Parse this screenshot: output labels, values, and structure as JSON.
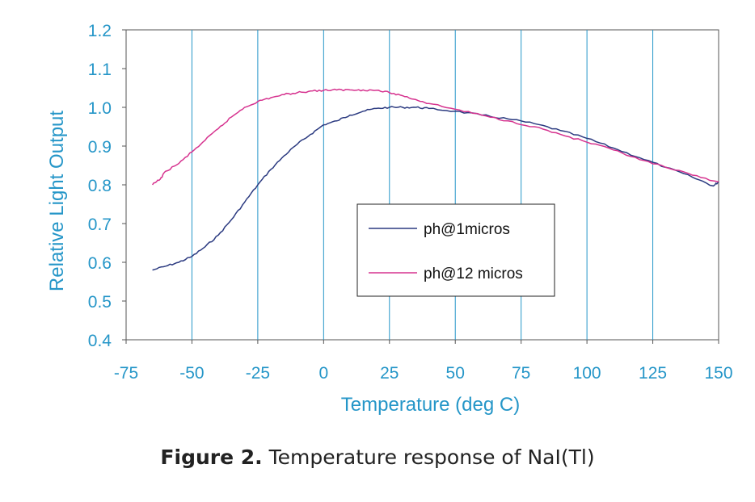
{
  "chart_data": {
    "type": "line",
    "xlabel": "Temperature (deg C)",
    "ylabel": "Relative Light Output",
    "xlim": [
      -75,
      150
    ],
    "ylim": [
      0.4,
      1.2
    ],
    "x_ticks": [
      "-75",
      "-50",
      "-25",
      "0",
      "25",
      "50",
      "75",
      "100",
      "125",
      "150"
    ],
    "y_ticks": [
      "0.4",
      "0.5",
      "0.6",
      "0.7",
      "0.8",
      "0.9",
      "1.0",
      "1.1",
      "1.2"
    ],
    "grid": "vertical",
    "legend_position": "right-center",
    "series": [
      {
        "name": "ph@1micros",
        "color": "#2b3a80",
        "points": [
          [
            -65,
            0.58
          ],
          [
            -60,
            0.59
          ],
          [
            -55,
            0.6
          ],
          [
            -50,
            0.615
          ],
          [
            -45,
            0.64
          ],
          [
            -40,
            0.67
          ],
          [
            -35,
            0.71
          ],
          [
            -30,
            0.755
          ],
          [
            -25,
            0.8
          ],
          [
            -20,
            0.84
          ],
          [
            -15,
            0.875
          ],
          [
            -10,
            0.905
          ],
          [
            -5,
            0.93
          ],
          [
            0,
            0.955
          ],
          [
            5,
            0.965
          ],
          [
            10,
            0.98
          ],
          [
            15,
            0.99
          ],
          [
            20,
            0.997
          ],
          [
            25,
            1.0
          ],
          [
            30,
            1.0
          ],
          [
            35,
            1.0
          ],
          [
            40,
            0.997
          ],
          [
            50,
            0.99
          ],
          [
            60,
            0.98
          ],
          [
            70,
            0.97
          ],
          [
            80,
            0.958
          ],
          [
            90,
            0.94
          ],
          [
            100,
            0.92
          ],
          [
            110,
            0.895
          ],
          [
            120,
            0.87
          ],
          [
            130,
            0.845
          ],
          [
            140,
            0.82
          ],
          [
            148,
            0.797
          ],
          [
            150,
            0.808
          ]
        ]
      },
      {
        "name": "ph@12 micros",
        "color": "#d6338f",
        "points": [
          [
            -65,
            0.8
          ],
          [
            -62,
            0.815
          ],
          [
            -60,
            0.835
          ],
          [
            -55,
            0.855
          ],
          [
            -50,
            0.885
          ],
          [
            -45,
            0.915
          ],
          [
            -40,
            0.945
          ],
          [
            -35,
            0.975
          ],
          [
            -30,
            1.0
          ],
          [
            -25,
            1.015
          ],
          [
            -20,
            1.025
          ],
          [
            -15,
            1.033
          ],
          [
            -10,
            1.038
          ],
          [
            -5,
            1.042
          ],
          [
            0,
            1.044
          ],
          [
            5,
            1.045
          ],
          [
            10,
            1.045
          ],
          [
            15,
            1.045
          ],
          [
            20,
            1.044
          ],
          [
            25,
            1.038
          ],
          [
            30,
            1.03
          ],
          [
            35,
            1.02
          ],
          [
            40,
            1.01
          ],
          [
            50,
            0.995
          ],
          [
            60,
            0.98
          ],
          [
            70,
            0.965
          ],
          [
            80,
            0.95
          ],
          [
            90,
            0.93
          ],
          [
            100,
            0.91
          ],
          [
            110,
            0.89
          ],
          [
            120,
            0.865
          ],
          [
            130,
            0.845
          ],
          [
            140,
            0.825
          ],
          [
            150,
            0.808
          ]
        ]
      }
    ]
  },
  "caption": {
    "label": "Figure 2.",
    "text": " Temperature response of NaI(Tl)"
  }
}
